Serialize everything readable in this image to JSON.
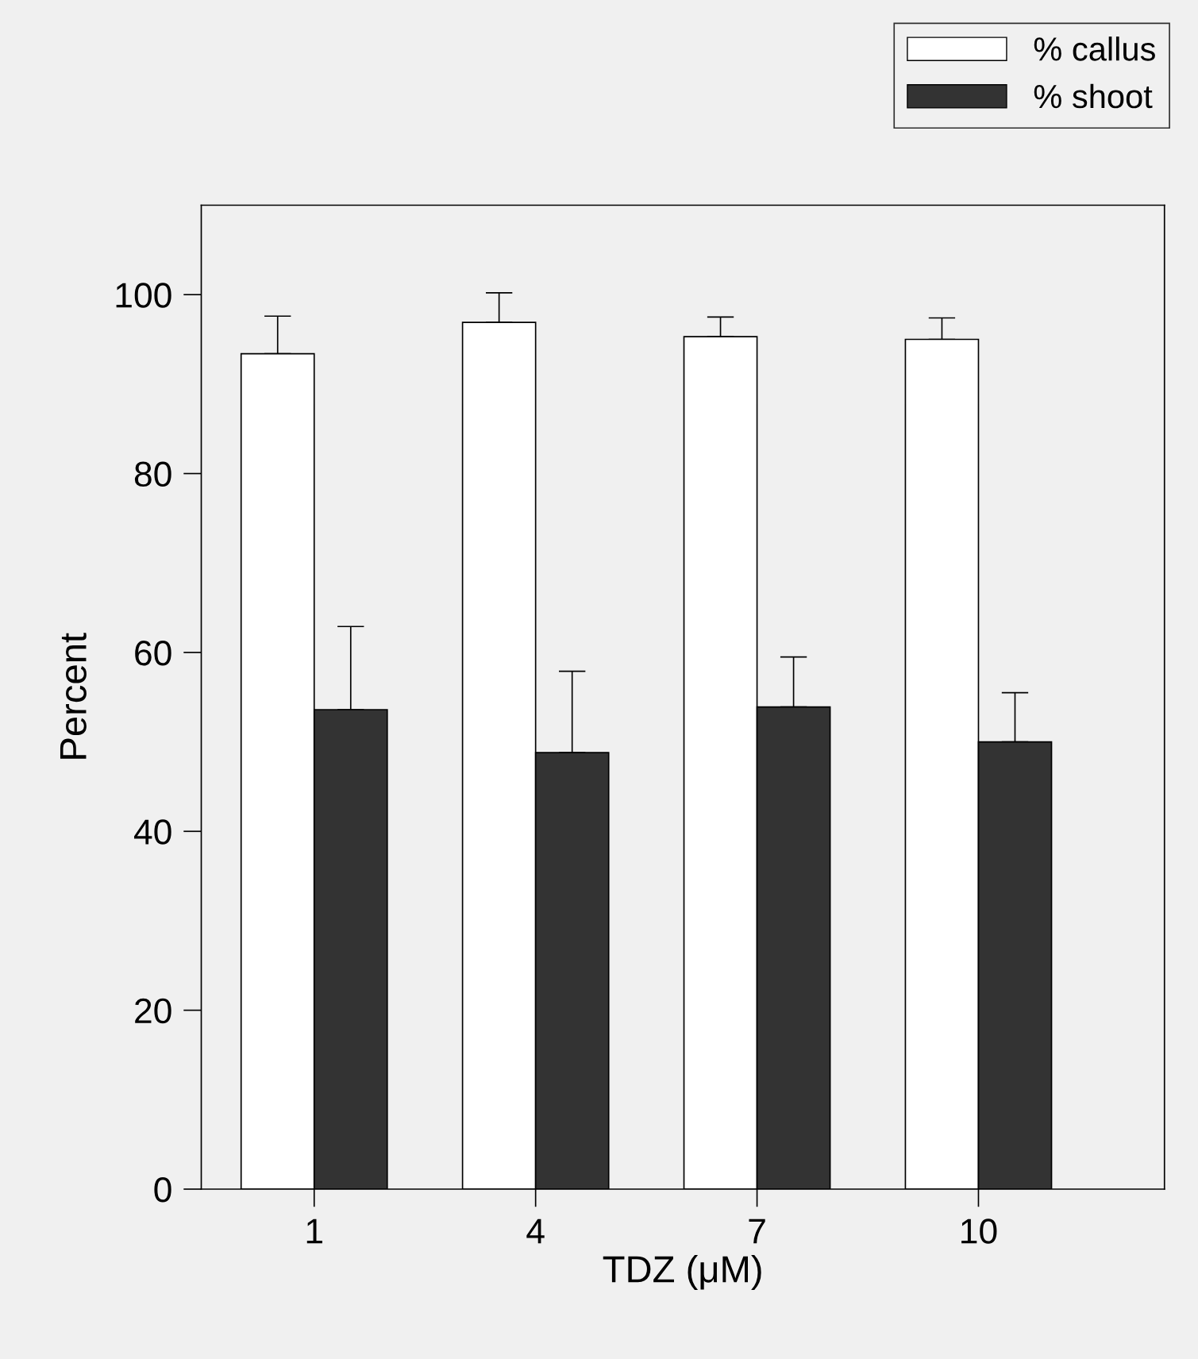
{
  "chart_data": {
    "type": "bar",
    "xlabel": "TDZ (μM)",
    "ylabel": "Percent",
    "categories": [
      "1",
      "4",
      "7",
      "10"
    ],
    "series": [
      {
        "name": "% callus",
        "color": "#ffffff",
        "values": [
          93.4,
          96.9,
          95.3,
          95.0
        ],
        "errors": [
          [
            93.4,
            97.6
          ],
          [
            96.9,
            100.2
          ],
          [
            95.3,
            97.5
          ],
          [
            95.0,
            97.4
          ]
        ]
      },
      {
        "name": "% shoot",
        "color": "#333333",
        "values": [
          53.6,
          48.8,
          53.9,
          50.0
        ],
        "errors": [
          [
            53.6,
            62.9
          ],
          [
            48.8,
            57.9
          ],
          [
            53.9,
            59.5
          ],
          [
            50.0,
            55.5
          ]
        ]
      }
    ],
    "ylim": [
      0,
      110
    ],
    "yticks": [
      0,
      20,
      40,
      60,
      80,
      100
    ],
    "grid": false,
    "legend": "top right"
  }
}
